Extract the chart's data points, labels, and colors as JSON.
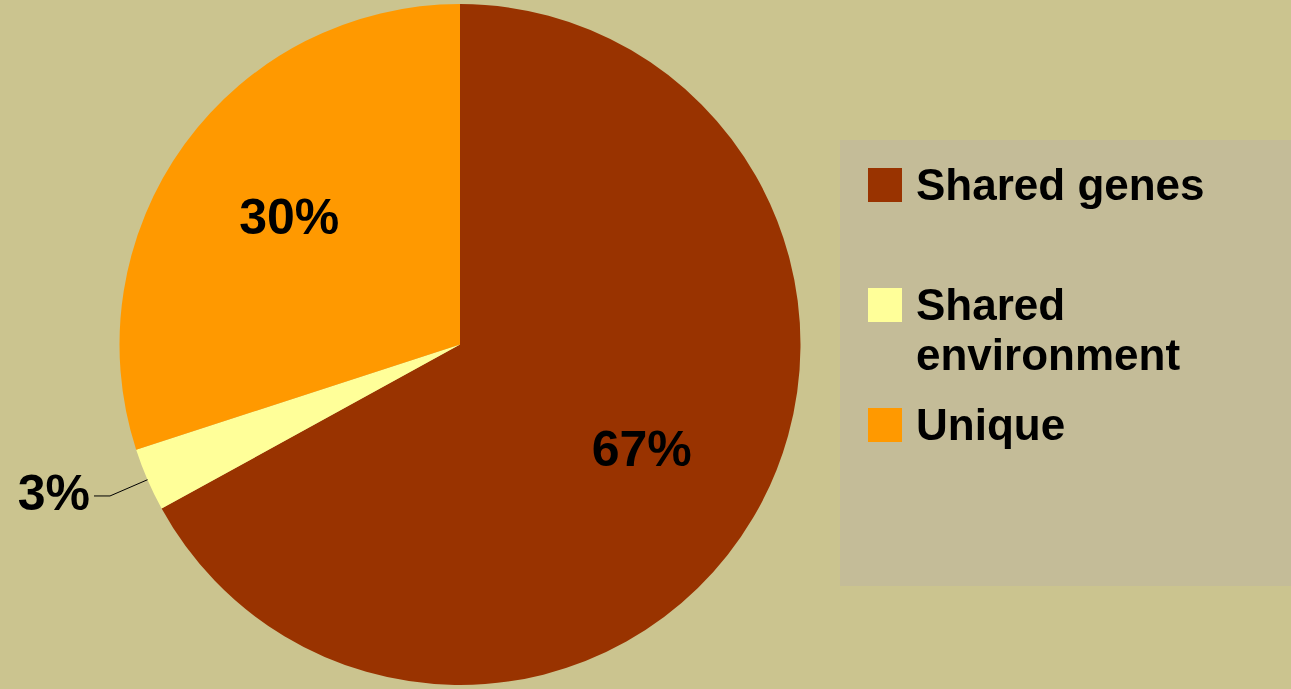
{
  "chart_data": {
    "type": "pie",
    "categories": [
      "Shared genes",
      "Shared environment",
      "Unique"
    ],
    "values": [
      67,
      3,
      30
    ],
    "colors": [
      "#993300",
      "#ffff99",
      "#ff9900"
    ],
    "value_labels": [
      "67%",
      "3%",
      "30%"
    ],
    "legend": "right"
  }
}
